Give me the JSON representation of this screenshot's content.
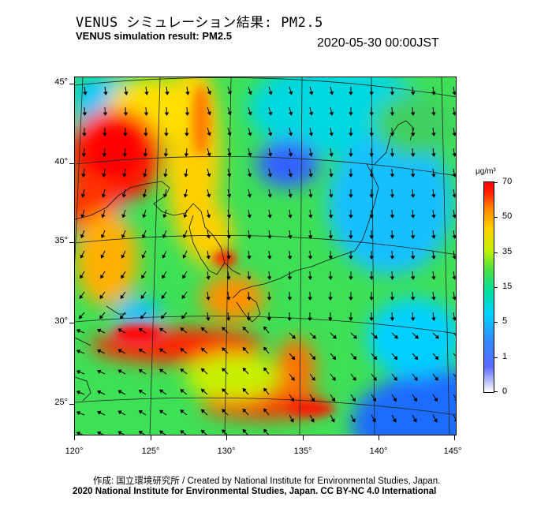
{
  "header": {
    "title_ja": "VENUS シミュレーション結果: PM2.5",
    "title_en": "VENUS simulation result: PM2.5",
    "timestamp": "2020-05-30 00:00JST"
  },
  "map": {
    "latitude_labels": [
      "45°",
      "40°",
      "35°",
      "30°",
      "25°"
    ],
    "longitude_labels": [
      "120°",
      "125°",
      "130°",
      "135°",
      "140°",
      "145°"
    ],
    "field": "PM2.5 concentration with wind vectors"
  },
  "colorbar": {
    "unit": "μg/m³",
    "ticks": [
      "70",
      "50",
      "35",
      "15",
      "5",
      "1",
      "0"
    ],
    "colors": {
      "low": "#ffffff",
      "blue": "#2f8cff",
      "cyan": "#00d0ff",
      "green": "#44e044",
      "yellow": "#ffd000",
      "orange": "#ff8000",
      "red": "#ff0000"
    }
  },
  "footer": {
    "credit_ja": "作成: 国立環境研究所 / Created by National Institute for Environmental Studies, Japan.",
    "credit_en": "2020 National Institute for Environmental Studies, Japan. CC BY-NC 4.0 International"
  }
}
